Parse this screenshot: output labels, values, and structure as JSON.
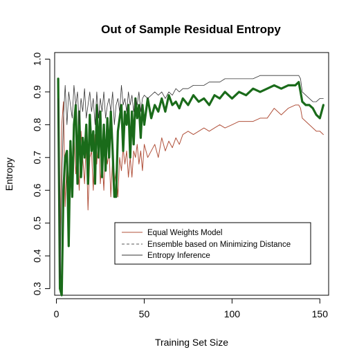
{
  "chart_data": {
    "type": "line",
    "title": "Out of Sample Residual Entropy",
    "xlabel": "Training Set Size",
    "ylabel": "Entropy",
    "xlim": [
      -1,
      155
    ],
    "ylim": [
      0.28,
      1.02
    ],
    "xticks": [
      0,
      50,
      100,
      150
    ],
    "yticks": [
      0.3,
      0.4,
      0.5,
      0.6,
      0.7,
      0.8,
      0.9,
      1.0
    ],
    "ytick_labels": [
      "0.3",
      "0.4",
      "0.5",
      "0.6",
      "0.7",
      "0.8",
      "0.9",
      "1.0"
    ],
    "grid": false,
    "legend": {
      "position": "center-right",
      "entries": [
        "Equal Weights Model",
        "Ensemble based on Minimizing Distance",
        "Entropy Inference"
      ]
    },
    "series": [
      {
        "name": "Equal Weights Model",
        "color": "#b0503a",
        "line_style": "solid",
        "x": [
          1,
          2,
          3,
          4,
          5,
          6,
          7,
          8,
          9,
          10,
          11,
          12,
          13,
          14,
          15,
          16,
          17,
          18,
          19,
          20,
          21,
          22,
          23,
          24,
          25,
          26,
          27,
          28,
          29,
          30,
          31,
          32,
          33,
          34,
          35,
          36,
          37,
          38,
          39,
          40,
          41,
          42,
          43,
          44,
          45,
          46,
          47,
          48,
          49,
          50,
          52,
          54,
          56,
          58,
          60,
          62,
          64,
          66,
          68,
          70,
          72,
          75,
          78,
          81,
          84,
          87,
          90,
          93,
          96,
          100,
          104,
          108,
          112,
          116,
          120,
          124,
          128,
          132,
          136,
          138,
          139,
          140,
          142,
          144,
          146,
          148,
          150,
          152
        ],
        "y": [
          0.9,
          0.35,
          0.8,
          0.87,
          0.55,
          0.7,
          0.62,
          0.75,
          0.68,
          0.78,
          0.65,
          0.72,
          0.6,
          0.78,
          0.7,
          0.62,
          0.75,
          0.54,
          0.7,
          0.72,
          0.6,
          0.77,
          0.68,
          0.78,
          0.62,
          0.7,
          0.6,
          0.74,
          0.68,
          0.72,
          0.58,
          0.7,
          0.62,
          0.66,
          0.58,
          0.7,
          0.66,
          0.73,
          0.68,
          0.72,
          0.64,
          0.7,
          0.64,
          0.72,
          0.7,
          0.74,
          0.68,
          0.72,
          0.66,
          0.74,
          0.7,
          0.72,
          0.74,
          0.7,
          0.76,
          0.72,
          0.75,
          0.73,
          0.76,
          0.74,
          0.77,
          0.78,
          0.77,
          0.78,
          0.79,
          0.78,
          0.79,
          0.8,
          0.79,
          0.8,
          0.81,
          0.81,
          0.81,
          0.82,
          0.82,
          0.85,
          0.83,
          0.85,
          0.86,
          0.86,
          0.85,
          0.82,
          0.81,
          0.8,
          0.79,
          0.78,
          0.78,
          0.77
        ]
      },
      {
        "name": "Ensemble based on Minimizing Distance",
        "color": "#1a6b1a",
        "line_style": "solid-thick",
        "x": [
          1,
          2,
          3,
          4,
          5,
          6,
          7,
          8,
          9,
          10,
          11,
          12,
          13,
          14,
          15,
          16,
          17,
          18,
          19,
          20,
          21,
          22,
          23,
          24,
          25,
          26,
          27,
          28,
          29,
          30,
          31,
          32,
          33,
          34,
          35,
          36,
          37,
          38,
          39,
          40,
          41,
          42,
          43,
          44,
          45,
          46,
          47,
          48,
          49,
          50,
          52,
          54,
          56,
          58,
          60,
          62,
          64,
          66,
          68,
          70,
          72,
          75,
          78,
          81,
          84,
          87,
          90,
          93,
          96,
          100,
          104,
          108,
          112,
          116,
          120,
          124,
          128,
          132,
          136,
          138,
          139,
          140,
          142,
          144,
          146,
          148,
          150,
          152
        ],
        "y": [
          0.94,
          0.3,
          0.28,
          0.6,
          0.7,
          0.72,
          0.43,
          0.75,
          0.58,
          0.8,
          0.86,
          0.62,
          0.84,
          0.64,
          0.76,
          0.7,
          0.8,
          0.62,
          0.83,
          0.72,
          0.78,
          0.62,
          0.86,
          0.7,
          0.84,
          0.64,
          0.8,
          0.66,
          0.82,
          0.7,
          0.84,
          0.72,
          0.58,
          0.58,
          0.78,
          0.82,
          0.86,
          0.72,
          0.84,
          0.8,
          0.86,
          0.7,
          0.84,
          0.74,
          0.88,
          0.82,
          0.86,
          0.76,
          0.86,
          0.8,
          0.88,
          0.82,
          0.86,
          0.84,
          0.88,
          0.84,
          0.89,
          0.86,
          0.87,
          0.85,
          0.88,
          0.86,
          0.89,
          0.87,
          0.88,
          0.86,
          0.89,
          0.88,
          0.9,
          0.88,
          0.9,
          0.89,
          0.91,
          0.9,
          0.91,
          0.92,
          0.91,
          0.92,
          0.92,
          0.93,
          0.9,
          0.87,
          0.86,
          0.86,
          0.85,
          0.83,
          0.82,
          0.86
        ]
      },
      {
        "name": "Entropy Inference",
        "color": "#333333",
        "line_style": "solid-thin",
        "x": [
          1,
          2,
          3,
          4,
          5,
          6,
          7,
          8,
          9,
          10,
          11,
          12,
          13,
          14,
          15,
          16,
          17,
          18,
          19,
          20,
          21,
          22,
          23,
          24,
          25,
          26,
          27,
          28,
          29,
          30,
          31,
          32,
          33,
          34,
          35,
          36,
          37,
          38,
          39,
          40,
          41,
          42,
          43,
          44,
          45,
          46,
          47,
          48,
          49,
          50,
          52,
          54,
          56,
          58,
          60,
          62,
          64,
          66,
          68,
          70,
          72,
          75,
          78,
          81,
          84,
          87,
          90,
          93,
          96,
          100,
          104,
          108,
          112,
          116,
          120,
          124,
          128,
          132,
          136,
          138,
          139,
          140,
          142,
          144,
          146,
          148,
          150,
          152
        ],
        "y": [
          0.88,
          0.33,
          0.6,
          0.82,
          0.92,
          0.8,
          0.9,
          0.86,
          0.82,
          0.92,
          0.86,
          0.9,
          0.8,
          0.88,
          0.84,
          0.91,
          0.82,
          0.86,
          0.9,
          0.84,
          0.88,
          0.8,
          0.9,
          0.82,
          0.88,
          0.84,
          0.9,
          0.82,
          0.86,
          0.88,
          0.84,
          0.9,
          0.8,
          0.86,
          0.88,
          0.84,
          0.92,
          0.86,
          0.88,
          0.84,
          0.9,
          0.86,
          0.89,
          0.84,
          0.88,
          0.86,
          0.9,
          0.84,
          0.88,
          0.89,
          0.88,
          0.89,
          0.9,
          0.89,
          0.9,
          0.88,
          0.9,
          0.89,
          0.91,
          0.9,
          0.91,
          0.91,
          0.92,
          0.92,
          0.92,
          0.93,
          0.93,
          0.93,
          0.94,
          0.94,
          0.94,
          0.94,
          0.94,
          0.95,
          0.95,
          0.95,
          0.95,
          0.95,
          0.95,
          0.95,
          0.94,
          0.9,
          0.89,
          0.88,
          0.87,
          0.87,
          0.88,
          0.88
        ]
      }
    ]
  }
}
